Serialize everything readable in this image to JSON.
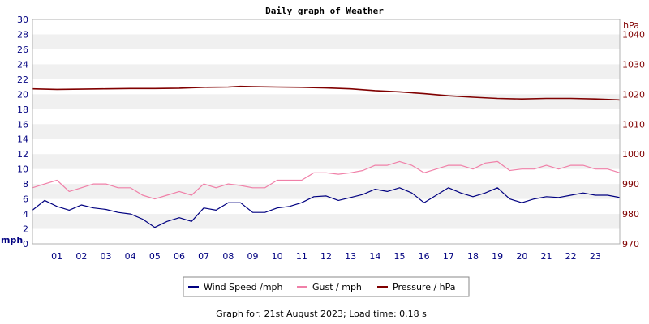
{
  "chart_data": {
    "type": "line",
    "title": "Daily graph of Weather",
    "y_left": {
      "label": "mph",
      "min": 0,
      "max": 30,
      "ticks": [
        0,
        2,
        4,
        6,
        8,
        10,
        12,
        14,
        16,
        18,
        20,
        22,
        24,
        26,
        28,
        30
      ]
    },
    "y_right": {
      "label": "hPa",
      "min": 970,
      "max": 1045,
      "ticks": [
        970,
        980,
        990,
        1000,
        1010,
        1020,
        1030,
        1040
      ]
    },
    "x": {
      "min": 0,
      "max": 24,
      "ticks": [
        "01",
        "02",
        "03",
        "04",
        "05",
        "06",
        "07",
        "08",
        "09",
        "10",
        "11",
        "12",
        "13",
        "14",
        "15",
        "16",
        "17",
        "18",
        "19",
        "20",
        "21",
        "22",
        "23"
      ]
    },
    "grid": "horizontal bands",
    "legend_position": "bottom",
    "colors": {
      "wind": "#000080",
      "gust": "#f080a8",
      "pressure": "#800000",
      "left_axis": "#000080",
      "right_axis": "#800000",
      "band": "#f0f0f0"
    },
    "series": [
      {
        "name": "Wind Speed /mph",
        "axis": "left",
        "x": [
          0,
          0.5,
          1,
          1.5,
          2,
          2.5,
          3,
          3.5,
          4,
          4.5,
          5,
          5.5,
          6,
          6.5,
          7,
          7.5,
          8,
          8.5,
          9,
          9.5,
          10,
          10.5,
          11,
          11.5,
          12,
          12.5,
          13,
          13.5,
          14,
          14.5,
          15,
          15.5,
          16,
          16.5,
          17,
          17.5,
          18,
          18.5,
          19,
          19.5,
          20,
          20.5,
          21,
          21.5,
          22,
          22.5,
          23,
          23.5,
          24
        ],
        "values": [
          4.5,
          5.8,
          5.0,
          4.5,
          5.2,
          4.8,
          4.6,
          4.2,
          4.0,
          3.3,
          2.2,
          3.0,
          3.5,
          3.0,
          4.8,
          4.5,
          5.5,
          5.5,
          4.2,
          4.2,
          4.8,
          5.0,
          5.5,
          6.3,
          6.4,
          5.8,
          6.2,
          6.6,
          7.3,
          7.0,
          7.5,
          6.8,
          5.5,
          6.5,
          7.5,
          6.8,
          6.3,
          6.8,
          7.5,
          6.0,
          5.5,
          6.0,
          6.3,
          6.2,
          6.5,
          6.8,
          6.5,
          6.5,
          6.2
        ]
      },
      {
        "name": "Gust / mph",
        "axis": "left",
        "x": [
          0,
          0.5,
          1,
          1.5,
          2,
          2.5,
          3,
          3.5,
          4,
          4.5,
          5,
          5.5,
          6,
          6.5,
          7,
          7.5,
          8,
          8.5,
          9,
          9.5,
          10,
          10.5,
          11,
          11.5,
          12,
          12.5,
          13,
          13.5,
          14,
          14.5,
          15,
          15.5,
          16,
          16.5,
          17,
          17.5,
          18,
          18.5,
          19,
          19.5,
          20,
          20.5,
          21,
          21.5,
          22,
          22.5,
          23,
          23.5,
          24
        ],
        "values": [
          7.5,
          8.0,
          8.5,
          7.0,
          7.5,
          8.0,
          8.0,
          7.5,
          7.5,
          6.5,
          6.0,
          6.5,
          7.0,
          6.5,
          8.0,
          7.5,
          8.0,
          7.8,
          7.5,
          7.5,
          8.5,
          8.5,
          8.5,
          9.5,
          9.5,
          9.3,
          9.5,
          9.8,
          10.5,
          10.5,
          11.0,
          10.5,
          9.5,
          10.0,
          10.5,
          10.5,
          10.0,
          10.8,
          11.0,
          9.8,
          10.0,
          10.0,
          10.5,
          10.0,
          10.5,
          10.5,
          10.0,
          10.0,
          9.5
        ]
      },
      {
        "name": "Pressure / hPa",
        "axis": "right",
        "x": [
          0,
          1,
          2,
          3,
          4,
          5,
          6,
          7,
          8,
          8.5,
          9,
          10,
          11,
          12,
          13,
          14,
          15,
          16,
          17,
          18,
          19,
          20,
          21,
          22,
          23,
          24
        ],
        "values": [
          1021.8,
          1021.6,
          1021.7,
          1021.8,
          1021.9,
          1021.9,
          1022.0,
          1022.3,
          1022.4,
          1022.6,
          1022.5,
          1022.4,
          1022.3,
          1022.1,
          1021.8,
          1021.2,
          1020.8,
          1020.2,
          1019.5,
          1019.0,
          1018.6,
          1018.4,
          1018.6,
          1018.6,
          1018.4,
          1018.1
        ]
      }
    ]
  },
  "footer": {
    "text": "Graph for: 21st August 2023; Load time: 0.18 s"
  }
}
